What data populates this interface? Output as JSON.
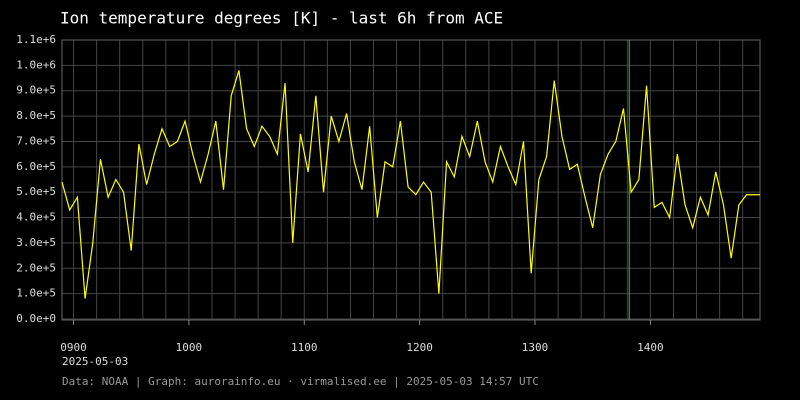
{
  "chart_data": {
    "type": "line",
    "title": "Ion temperature degrees [K] - last 6h from ACE",
    "date_label": "2025-05-03",
    "footer": "Data: NOAA | Graph: aurorainfo.eu · virmalised.ee | 2025-05-03 14:57 UTC",
    "x": [
      534,
      538,
      542,
      546,
      550,
      554,
      558,
      562,
      566,
      570,
      574,
      578,
      582,
      586,
      590,
      594,
      598,
      602,
      606,
      610,
      614,
      618,
      622,
      626,
      630,
      634,
      638,
      642,
      646,
      650,
      654,
      658,
      662,
      666,
      670,
      674,
      678,
      682,
      686,
      690,
      694,
      698,
      702,
      706,
      710,
      714,
      718,
      722,
      726,
      730,
      734,
      738,
      742,
      746,
      750,
      754,
      758,
      762,
      766,
      770,
      774,
      778,
      782,
      786,
      790,
      794,
      798,
      802,
      806,
      810,
      814,
      818,
      822,
      826,
      830,
      834,
      838,
      842,
      846,
      850,
      854,
      858,
      862,
      866,
      870,
      874,
      878,
      882,
      886,
      890,
      894,
      897
    ],
    "series": [
      {
        "name": "Ion temperature",
        "color": "#ffff00",
        "values": [
          540000,
          430000,
          480000,
          80000,
          300000,
          630000,
          480000,
          550000,
          500000,
          270000,
          690000,
          530000,
          650000,
          750000,
          680000,
          700000,
          780000,
          650000,
          540000,
          650000,
          780000,
          510000,
          880000,
          980000,
          750000,
          680000,
          760000,
          720000,
          650000,
          930000,
          300000,
          730000,
          580000,
          880000,
          500000,
          800000,
          700000,
          810000,
          620000,
          510000,
          760000,
          400000,
          620000,
          600000,
          780000,
          520000,
          490000,
          540000,
          500000,
          100000,
          620000,
          560000,
          720000,
          640000,
          780000,
          620000,
          540000,
          680000,
          600000,
          530000,
          700000,
          180000,
          550000,
          640000,
          940000,
          720000,
          590000,
          610000,
          480000,
          360000,
          570000,
          650000,
          700000,
          830000,
          500000,
          550000,
          920000,
          440000,
          460000,
          400000,
          650000,
          450000,
          360000,
          480000,
          410000,
          580000,
          450000,
          240000,
          450000,
          490000,
          490000,
          490000
        ]
      }
    ],
    "marker_x": 829,
    "marker_color": "#33cc33",
    "xlim": [
      534,
      897
    ],
    "xticks": [
      {
        "value": 540,
        "label": "0900"
      },
      {
        "value": 600,
        "label": "1000"
      },
      {
        "value": 660,
        "label": "1100"
      },
      {
        "value": 720,
        "label": "1200"
      },
      {
        "value": 780,
        "label": "1300"
      },
      {
        "value": 840,
        "label": "1400"
      }
    ],
    "xgrid": [
      540,
      552,
      564,
      576,
      588,
      600,
      612,
      624,
      636,
      648,
      660,
      672,
      684,
      696,
      708,
      720,
      732,
      744,
      756,
      768,
      780,
      792,
      804,
      816,
      828,
      840,
      852,
      864,
      876,
      888
    ],
    "ylim": [
      0,
      1100000
    ],
    "yticks": [
      {
        "value": 0,
        "label": "0.0e+0"
      },
      {
        "value": 100000,
        "label": "1.0e+5"
      },
      {
        "value": 200000,
        "label": "2.0e+5"
      },
      {
        "value": 300000,
        "label": "3.0e+5"
      },
      {
        "value": 400000,
        "label": "4.0e+5"
      },
      {
        "value": 500000,
        "label": "5.0e+5"
      },
      {
        "value": 600000,
        "label": "6.0e+5"
      },
      {
        "value": 700000,
        "label": "7.0e+5"
      },
      {
        "value": 800000,
        "label": "8.0e+5"
      },
      {
        "value": 900000,
        "label": "9.0e+5"
      },
      {
        "value": 1000000,
        "label": "1.0e+6"
      },
      {
        "value": 1100000,
        "label": "1.1e+6"
      }
    ],
    "grid": true
  }
}
